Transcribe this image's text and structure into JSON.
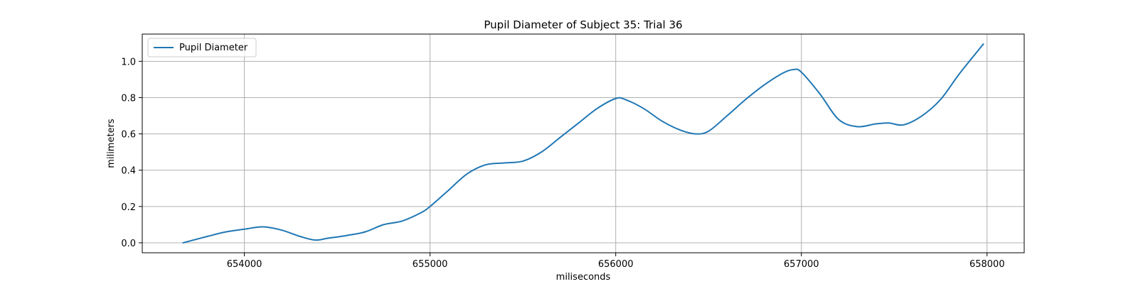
{
  "chart_data": {
    "type": "line",
    "title": "Pupil Diameter of Subject 35: Trial 36",
    "xlabel": "miliseconds",
    "ylabel": "milimeters",
    "xlim": [
      653450,
      658200
    ],
    "ylim": [
      -0.055,
      1.15
    ],
    "xticks": [
      654000,
      655000,
      656000,
      657000,
      658000
    ],
    "yticks": [
      0.0,
      0.2,
      0.4,
      0.6,
      0.8,
      1.0
    ],
    "xtick_labels": [
      "654000",
      "655000",
      "656000",
      "657000",
      "658000"
    ],
    "ytick_labels": [
      "0.0",
      "0.2",
      "0.4",
      "0.6",
      "0.8",
      "1.0"
    ],
    "grid": true,
    "legend_position": "top-left",
    "series": [
      {
        "name": "Pupil Diameter",
        "color": "#1f77b4",
        "x": [
          653670,
          653800,
          653900,
          654000,
          654100,
          654200,
          654300,
          654380,
          654450,
          654550,
          654650,
          654750,
          654850,
          654950,
          655000,
          655100,
          655200,
          655300,
          655400,
          655500,
          655600,
          655700,
          655800,
          655900,
          656000,
          656050,
          656150,
          656250,
          656350,
          656430,
          656500,
          656600,
          656700,
          656800,
          656900,
          656960,
          657000,
          657100,
          657200,
          657300,
          657400,
          657470,
          657550,
          657650,
          657750,
          657850,
          657980
        ],
        "y": [
          0.0,
          0.035,
          0.06,
          0.075,
          0.088,
          0.07,
          0.035,
          0.015,
          0.025,
          0.04,
          0.06,
          0.1,
          0.12,
          0.165,
          0.2,
          0.29,
          0.38,
          0.43,
          0.44,
          0.45,
          0.5,
          0.58,
          0.66,
          0.74,
          0.795,
          0.79,
          0.74,
          0.67,
          0.62,
          0.6,
          0.615,
          0.7,
          0.79,
          0.87,
          0.935,
          0.955,
          0.94,
          0.82,
          0.68,
          0.64,
          0.655,
          0.66,
          0.65,
          0.7,
          0.79,
          0.93,
          1.095
        ]
      }
    ]
  }
}
